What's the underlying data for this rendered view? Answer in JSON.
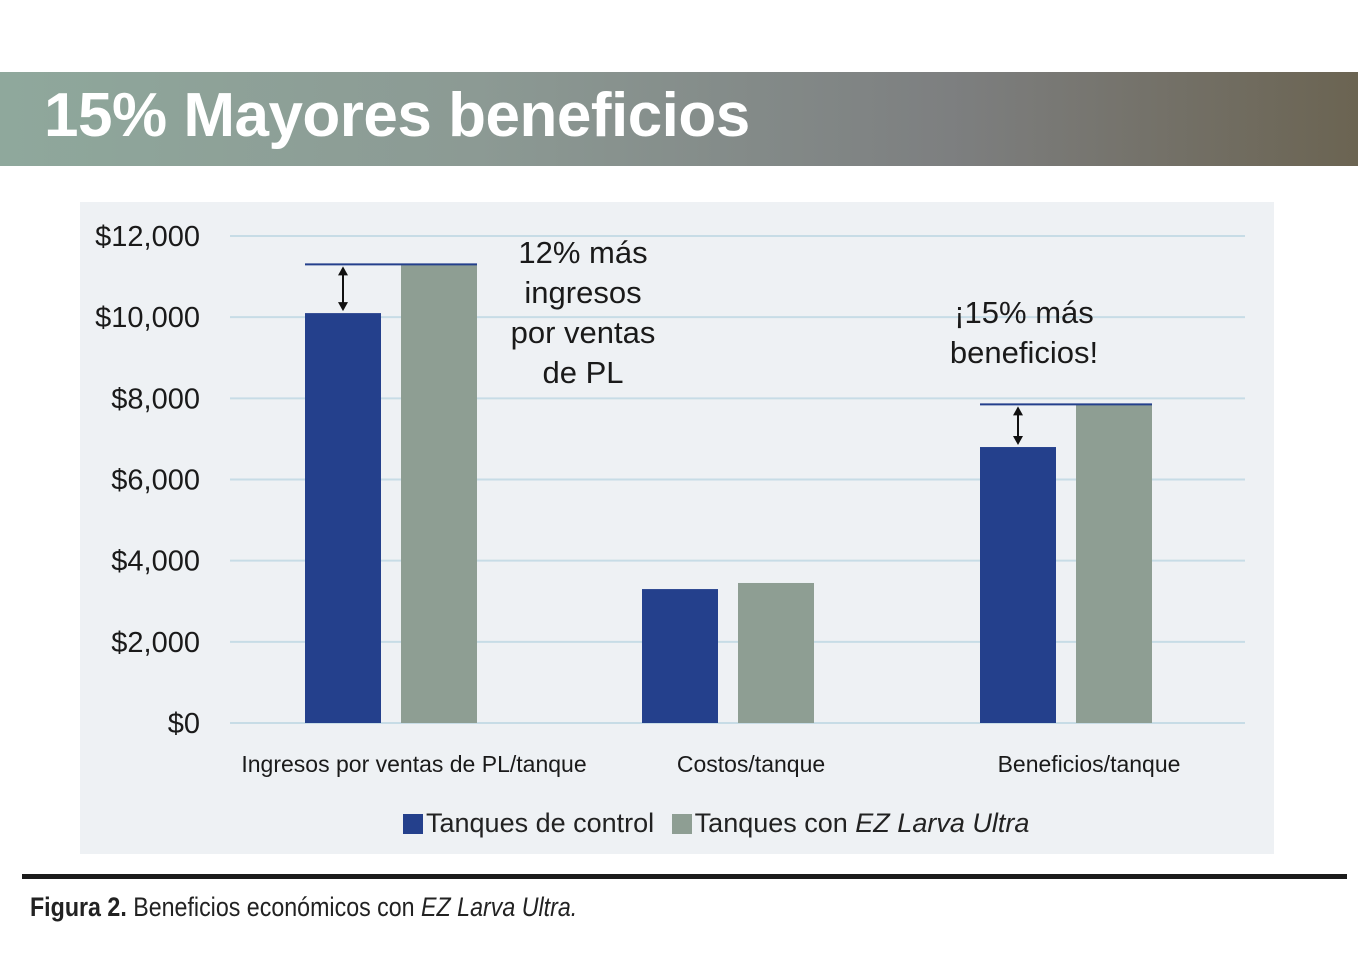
{
  "header": {
    "title": "15% Mayores beneficios"
  },
  "chart_data": {
    "type": "bar",
    "categories": [
      "Ingresos por ventas de PL/tanque",
      "Costos/tanque",
      "Beneficios/tanque"
    ],
    "series": [
      {
        "name": "Tanques de control",
        "values": [
          10100,
          3300,
          6800
        ],
        "color": "#24408c"
      },
      {
        "name": "Tanques con EZ Larva Ultra",
        "values": [
          11300,
          3450,
          7850
        ],
        "color": "#8e9e93"
      }
    ],
    "ylim": [
      0,
      12000
    ],
    "yticks": [
      0,
      2000,
      4000,
      6000,
      8000,
      10000,
      12000
    ],
    "ytick_labels": [
      "$0",
      "$2,000",
      "$4,000",
      "$6,000",
      "$8,000",
      "$10,000",
      "$12,000"
    ],
    "grid": true,
    "legend_position": "bottom",
    "annotations": [
      {
        "category": 0,
        "lines": [
          "12% más",
          "ingresos",
          "por ventas",
          "de PL"
        ]
      },
      {
        "category": 2,
        "lines": [
          "¡15% más",
          "beneficios!"
        ]
      }
    ]
  },
  "legend": {
    "control_label": "Tanques de control",
    "ez_prefix": "Tanques con ",
    "ez_product": "EZ Larva Ultra"
  },
  "caption": {
    "label": "Figura 2.",
    "text": " Beneficios económicos con ",
    "product": "EZ Larva Ultra."
  }
}
